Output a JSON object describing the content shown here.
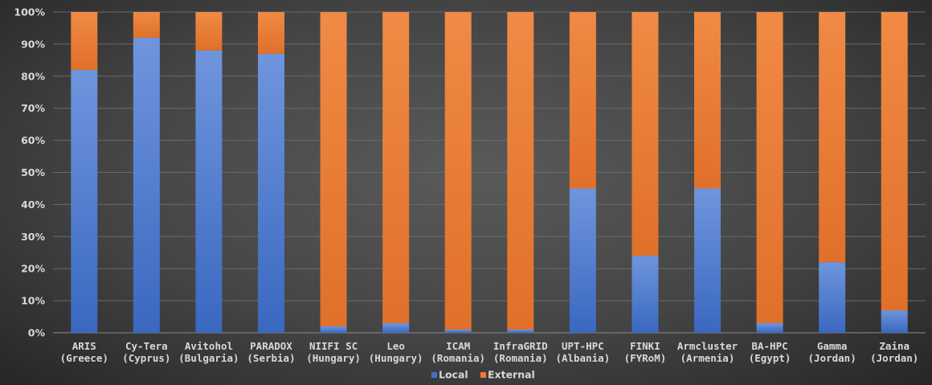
{
  "chart_data": {
    "type": "bar",
    "stacked": true,
    "percent": true,
    "categories": [
      [
        "ARIS",
        "(Greece)"
      ],
      [
        "Cy-Tera",
        "(Cyprus)"
      ],
      [
        "Avitohol",
        "(Bulgaria)"
      ],
      [
        "PARADOX",
        "(Serbia)"
      ],
      [
        "NIIFI SC",
        "(Hungary)"
      ],
      [
        "Leo",
        "(Hungary)"
      ],
      [
        "ICAM",
        "(Romania)"
      ],
      [
        "InfraGRID",
        "(Romania)"
      ],
      [
        "UPT-HPC",
        "(Albania)"
      ],
      [
        "FINKI",
        "(FYRoM)"
      ],
      [
        "Armcluster",
        "(Armenia)"
      ],
      [
        "BA-HPC",
        "(Egypt)"
      ],
      [
        "Gamma",
        "(Jordan)"
      ],
      [
        "Zaina",
        "(Jordan)"
      ]
    ],
    "series": [
      {
        "name": "Local",
        "color": "#4472c4",
        "values": [
          82,
          92,
          88,
          87,
          2,
          3,
          1,
          1,
          45,
          24,
          45,
          3,
          22,
          7
        ]
      },
      {
        "name": "External",
        "color": "#ed7d31",
        "values": [
          18,
          8,
          12,
          13,
          98,
          97,
          99,
          99,
          55,
          76,
          55,
          97,
          78,
          93
        ]
      }
    ],
    "yticks": [
      "0%",
      "10%",
      "20%",
      "30%",
      "40%",
      "50%",
      "60%",
      "70%",
      "80%",
      "90%",
      "100%"
    ],
    "ylim": [
      0,
      100
    ],
    "grid": true,
    "legend": "bottom"
  }
}
